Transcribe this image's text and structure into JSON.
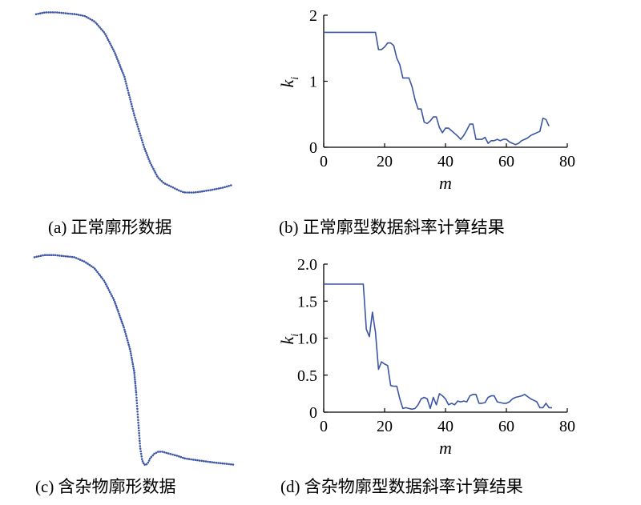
{
  "captions": {
    "a": "(a) 正常廓形数据",
    "b": "(b) 正常廓型数据斜率计算结果",
    "c": "(c) 含杂物廓形数据",
    "d": "(d) 含杂物廓型数据斜率计算结果"
  },
  "colors": {
    "series": "#3b55a5"
  },
  "chart_data": [
    {
      "panel": "a",
      "type": "scatter",
      "title": "",
      "xlabel": "",
      "ylabel": "",
      "axes_visible": false,
      "x": [
        0,
        5,
        10,
        15,
        20,
        25,
        30,
        35,
        40,
        45,
        50,
        55,
        58,
        60,
        61,
        62,
        63,
        64,
        65,
        66,
        67,
        68,
        69,
        70,
        71,
        72,
        73,
        74,
        75,
        76,
        78,
        80,
        83,
        86,
        90,
        95,
        100
      ],
      "y": [
        98,
        99,
        99,
        98.5,
        98,
        97,
        94,
        88,
        78,
        65,
        45,
        28,
        20,
        16,
        14,
        12,
        11,
        10,
        9,
        8.5,
        8,
        7.5,
        7,
        6.5,
        6,
        5.5,
        5,
        4.5,
        4.2,
        4,
        4,
        4,
        4.3,
        4.8,
        5.5,
        6.5,
        8
      ]
    },
    {
      "panel": "b",
      "type": "line",
      "title": "",
      "xlabel": "m",
      "ylabel": "k_i",
      "xlim": [
        0,
        80
      ],
      "ylim": [
        0,
        2
      ],
      "xticks": [
        "0",
        "20",
        "40",
        "60",
        "80"
      ],
      "yticks": [
        "0",
        "1",
        "2"
      ],
      "series": [
        {
          "x": [
            0,
            17,
            18,
            19,
            20,
            21,
            22,
            23,
            24,
            25,
            26,
            27,
            28,
            29,
            30,
            31,
            32,
            33,
            34,
            35,
            36,
            37,
            38,
            39,
            40,
            41,
            42,
            43,
            44,
            45,
            46,
            47,
            48,
            49,
            50,
            51,
            52,
            53,
            54,
            55,
            56,
            57,
            58,
            59,
            60,
            61,
            62,
            63,
            64,
            65,
            66,
            67,
            68,
            69,
            70,
            71,
            72,
            73,
            74
          ],
          "y": [
            1.74,
            1.74,
            1.48,
            1.48,
            1.52,
            1.58,
            1.58,
            1.54,
            1.35,
            1.25,
            1.05,
            1.05,
            1.05,
            0.92,
            0.72,
            0.58,
            0.58,
            0.38,
            0.36,
            0.4,
            0.46,
            0.46,
            0.3,
            0.22,
            0.29,
            0.29,
            0.25,
            0.21,
            0.17,
            0.12,
            0.18,
            0.26,
            0.35,
            0.35,
            0.12,
            0.12,
            0.12,
            0.15,
            0.06,
            0.1,
            0.1,
            0.12,
            0.1,
            0.12,
            0.12,
            0.08,
            0.06,
            0.04,
            0.06,
            0.1,
            0.12,
            0.14,
            0.18,
            0.2,
            0.22,
            0.24,
            0.44,
            0.42,
            0.32
          ]
        }
      ]
    },
    {
      "panel": "c",
      "type": "scatter",
      "title": "",
      "xlabel": "",
      "ylabel": "",
      "axes_visible": false,
      "x": [
        0,
        5,
        10,
        15,
        20,
        25,
        30,
        35,
        40,
        45,
        48,
        50,
        51,
        52,
        53,
        54,
        55,
        56,
        57,
        58,
        59,
        60,
        62,
        64,
        66,
        68,
        70,
        72,
        75,
        78,
        82,
        86,
        90,
        95,
        100
      ],
      "y": [
        98,
        99,
        99,
        98.5,
        98,
        96,
        93,
        87,
        78,
        65,
        55,
        45,
        35,
        22,
        10,
        4,
        2,
        2,
        3,
        5,
        6,
        7,
        8,
        8,
        7.5,
        7,
        6.5,
        6,
        5,
        4.5,
        4,
        3.5,
        3,
        2.5,
        2
      ]
    },
    {
      "panel": "d",
      "type": "line",
      "title": "",
      "xlabel": "m",
      "ylabel": "k_i",
      "xlim": [
        0,
        80
      ],
      "ylim": [
        0,
        2
      ],
      "xticks": [
        "0",
        "20",
        "40",
        "60",
        "80"
      ],
      "yticks": [
        "0",
        "0.5",
        "1.0",
        "1.5",
        "2.0"
      ],
      "series": [
        {
          "x": [
            0,
            13,
            14,
            15,
            16,
            17,
            18,
            19,
            20,
            21,
            22,
            23,
            24,
            25,
            26,
            27,
            28,
            29,
            30,
            31,
            32,
            33,
            34,
            35,
            36,
            37,
            38,
            39,
            40,
            41,
            42,
            43,
            44,
            45,
            46,
            47,
            48,
            49,
            50,
            51,
            52,
            53,
            54,
            55,
            56,
            57,
            58,
            59,
            60,
            61,
            62,
            63,
            64,
            65,
            66,
            67,
            68,
            69,
            70,
            71,
            72,
            73,
            74,
            75
          ],
          "y": [
            1.73,
            1.73,
            1.12,
            1.02,
            1.35,
            1.08,
            0.58,
            0.68,
            0.65,
            0.63,
            0.36,
            0.35,
            0.35,
            0.18,
            0.05,
            0.06,
            0.05,
            0.04,
            0.05,
            0.1,
            0.18,
            0.2,
            0.18,
            0.05,
            0.2,
            0.1,
            0.25,
            0.22,
            0.18,
            0.1,
            0.12,
            0.1,
            0.15,
            0.14,
            0.15,
            0.14,
            0.22,
            0.24,
            0.24,
            0.12,
            0.12,
            0.13,
            0.2,
            0.22,
            0.22,
            0.14,
            0.13,
            0.12,
            0.12,
            0.14,
            0.18,
            0.2,
            0.21,
            0.22,
            0.24,
            0.21,
            0.18,
            0.16,
            0.14,
            0.06,
            0.06,
            0.12,
            0.06,
            0.06
          ]
        }
      ]
    }
  ]
}
